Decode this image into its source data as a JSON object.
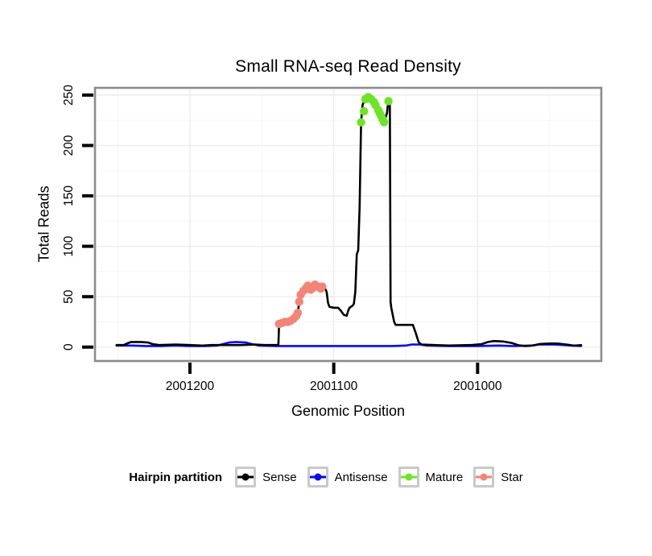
{
  "title": "Small RNA-seq Read Density",
  "axes": {
    "x_label": "Genomic Position",
    "y_label": "Total Reads"
  },
  "legend": {
    "label": "Hairpin partition",
    "items": [
      {
        "label": "Sense",
        "color": "#000000"
      },
      {
        "label": "Antisense",
        "color": "#0B0BEE"
      },
      {
        "label": "Mature",
        "color": "#6EE328"
      },
      {
        "label": "Star",
        "color": "#F28577"
      }
    ]
  },
  "chart_data": {
    "type": "line",
    "title": "Small RNA-seq Read Density",
    "xlabel": "Genomic Position",
    "ylabel": "Total Reads",
    "x_domain": [
      2001266,
      2000914
    ],
    "y_domain": [
      -13.8,
      257.2
    ],
    "x_ticks": [
      2001200,
      2001100,
      2001000
    ],
    "x_minor_ticks": [
      2001250,
      2001150,
      2001050,
      2000950
    ],
    "y_ticks": [
      0,
      50,
      100,
      150,
      200,
      250
    ],
    "y_minor_ticks": [
      25,
      75,
      125,
      175,
      225
    ],
    "grid": {
      "major_color": "#ECECEC",
      "minor_color": "#F6F6F6",
      "frame_color": "#8C8C8C"
    },
    "legend_position": "bottom",
    "series": [
      {
        "name": "Antisense",
        "type": "line",
        "color": "#0B0BEE",
        "points": [
          [
            2001251,
            1.5
          ],
          [
            2001240,
            1.5
          ],
          [
            2001230,
            1
          ],
          [
            2001220,
            1
          ],
          [
            2001210,
            1.5
          ],
          [
            2001200,
            1
          ],
          [
            2001190,
            1
          ],
          [
            2001181,
            1.5
          ],
          [
            2001177,
            3
          ],
          [
            2001173,
            4.5
          ],
          [
            2001168,
            5
          ],
          [
            2001161,
            4.5
          ],
          [
            2001157,
            3
          ],
          [
            2001152,
            1.5
          ],
          [
            2001140,
            1
          ],
          [
            2001120,
            1
          ],
          [
            2001100,
            1
          ],
          [
            2001080,
            1
          ],
          [
            2001060,
            1
          ],
          [
            2001050,
            1.5
          ],
          [
            2001046,
            2.5
          ],
          [
            2001040,
            2.5
          ],
          [
            2001035,
            1.5
          ],
          [
            2001020,
            1
          ],
          [
            2001000,
            1
          ],
          [
            2000985,
            1.5
          ],
          [
            2000975,
            1
          ],
          [
            2000963,
            1.5
          ],
          [
            2000957,
            2.5
          ],
          [
            2000947,
            2.5
          ],
          [
            2000940,
            2
          ],
          [
            2000935,
            1.5
          ],
          [
            2000928,
            1
          ]
        ]
      },
      {
        "name": "Sense",
        "type": "line",
        "color": "#000000",
        "points": [
          [
            2001251,
            2
          ],
          [
            2001246,
            2
          ],
          [
            2001243,
            4
          ],
          [
            2001241,
            5
          ],
          [
            2001234,
            5
          ],
          [
            2001229,
            4.5
          ],
          [
            2001226,
            3
          ],
          [
            2001221,
            2
          ],
          [
            2001210,
            2.5
          ],
          [
            2001200,
            2
          ],
          [
            2001192,
            1.5
          ],
          [
            2001185,
            2
          ],
          [
            2001175,
            2
          ],
          [
            2001165,
            2
          ],
          [
            2001155,
            2.5
          ],
          [
            2001148,
            2
          ],
          [
            2001138.5,
            2
          ],
          [
            2001138,
            23
          ],
          [
            2001136,
            24
          ],
          [
            2001134,
            25
          ],
          [
            2001132,
            25
          ],
          [
            2001130,
            26
          ],
          [
            2001128,
            28
          ],
          [
            2001126,
            31
          ],
          [
            2001125,
            34
          ],
          [
            2001124,
            45
          ],
          [
            2001123,
            52
          ],
          [
            2001121,
            56
          ],
          [
            2001119,
            59
          ],
          [
            2001118,
            61
          ],
          [
            2001116,
            57
          ],
          [
            2001114,
            59
          ],
          [
            2001113,
            62
          ],
          [
            2001111,
            60
          ],
          [
            2001109,
            58
          ],
          [
            2001108,
            60
          ],
          [
            2001107,
            59
          ],
          [
            2001106,
            58
          ],
          [
            2001105,
            55
          ],
          [
            2001104.5,
            50
          ],
          [
            2001104,
            44
          ],
          [
            2001103,
            40
          ],
          [
            2001100,
            39
          ],
          [
            2001097,
            39
          ],
          [
            2001095,
            36
          ],
          [
            2001093,
            32
          ],
          [
            2001091,
            31
          ],
          [
            2001090,
            36
          ],
          [
            2001089,
            39
          ],
          [
            2001087,
            41
          ],
          [
            2001086,
            43
          ],
          [
            2001085,
            55
          ],
          [
            2001084,
            92
          ],
          [
            2001083,
            96
          ],
          [
            2001082,
            140
          ],
          [
            2001081,
            223
          ],
          [
            2001080,
            240
          ],
          [
            2001078,
            247
          ],
          [
            2001076,
            248
          ],
          [
            2001074,
            246
          ],
          [
            2001072,
            243
          ],
          [
            2001070,
            238
          ],
          [
            2001068,
            232
          ],
          [
            2001067,
            229
          ],
          [
            2001066,
            226
          ],
          [
            2001065,
            223
          ],
          [
            2001063,
            232
          ],
          [
            2001062,
            245
          ],
          [
            2001061,
            240
          ],
          [
            2001060.5,
            45
          ],
          [
            2001060,
            39
          ],
          [
            2001058,
            25
          ],
          [
            2001057,
            22
          ],
          [
            2001045,
            22
          ],
          [
            2001043,
            14
          ],
          [
            2001041,
            5
          ],
          [
            2001039,
            2.5
          ],
          [
            2001030,
            2
          ],
          [
            2001020,
            1.5
          ],
          [
            2001005,
            2
          ],
          [
            2000997,
            3
          ],
          [
            2000993,
            5
          ],
          [
            2000989,
            6
          ],
          [
            2000982,
            5.5
          ],
          [
            2000976,
            4
          ],
          [
            2000972,
            2
          ],
          [
            2000967,
            1
          ],
          [
            2000962,
            1.5
          ],
          [
            2000957,
            3
          ],
          [
            2000950,
            3.5
          ],
          [
            2000944,
            3.5
          ],
          [
            2000938,
            2.5
          ],
          [
            2000933,
            1.5
          ],
          [
            2000928,
            2
          ]
        ]
      },
      {
        "name": "Star",
        "type": "scatter",
        "color": "#F28577",
        "points": [
          [
            2001138,
            23
          ],
          [
            2001136,
            24
          ],
          [
            2001134,
            25
          ],
          [
            2001132,
            25
          ],
          [
            2001130,
            26
          ],
          [
            2001128,
            28
          ],
          [
            2001126,
            31
          ],
          [
            2001125,
            34
          ],
          [
            2001124,
            45
          ],
          [
            2001123,
            52
          ],
          [
            2001121,
            56
          ],
          [
            2001119,
            59
          ],
          [
            2001118,
            61
          ],
          [
            2001116,
            57
          ],
          [
            2001114,
            59
          ],
          [
            2001113,
            62
          ],
          [
            2001111,
            60
          ],
          [
            2001109,
            58
          ],
          [
            2001108,
            60
          ]
        ]
      },
      {
        "name": "Mature",
        "type": "scatter",
        "color": "#6EE328",
        "points": [
          [
            2001081,
            223
          ],
          [
            2001079,
            234
          ],
          [
            2001078,
            246
          ],
          [
            2001076,
            248
          ],
          [
            2001074,
            246
          ],
          [
            2001072,
            243
          ],
          [
            2001071,
            240
          ],
          [
            2001069,
            235
          ],
          [
            2001068,
            232
          ],
          [
            2001067,
            229
          ],
          [
            2001066,
            226
          ],
          [
            2001065,
            223
          ],
          [
            2001062,
            244
          ]
        ]
      }
    ]
  }
}
